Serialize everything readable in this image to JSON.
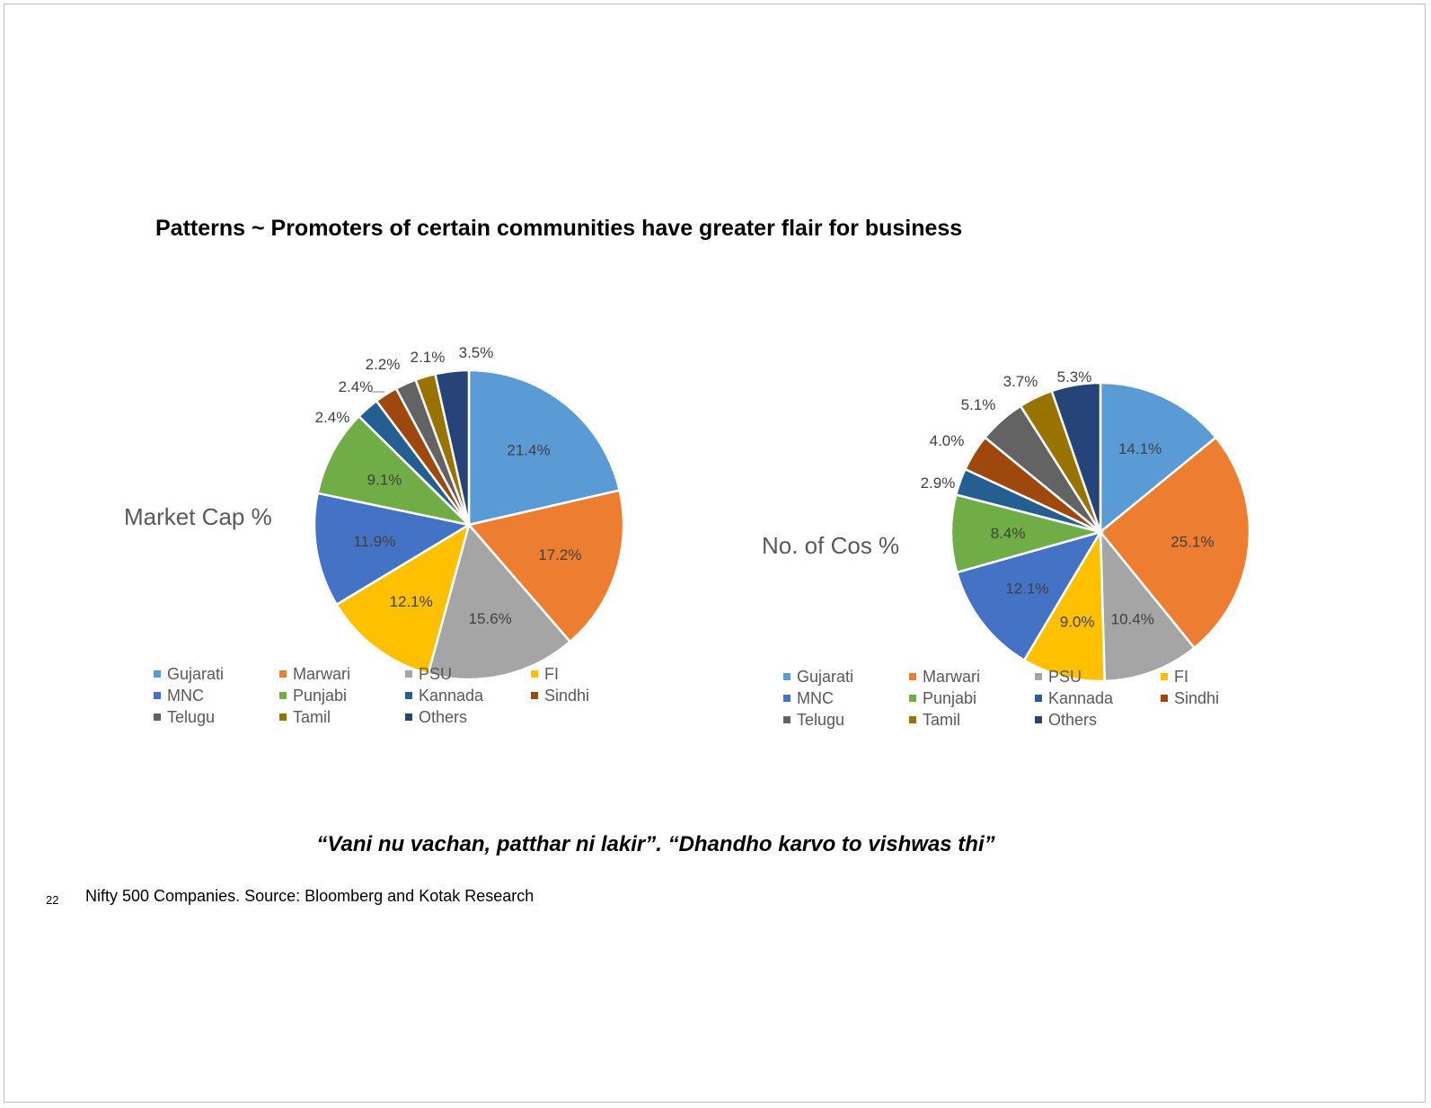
{
  "slide": {
    "title": "Patterns ~ Promoters of certain communities have greater flair for business",
    "quote": "“Vani nu vachan, patthar ni lakir”. “Dhandho karvo to vishwas thi”",
    "page_number": "22",
    "source": "Nifty 500 Companies. Source: Bloomberg and Kotak Research"
  },
  "colors": {
    "Gujarati": "#5B9BD5",
    "Marwari": "#ED7D31",
    "PSU": "#A5A5A5",
    "FI": "#FFC000",
    "MNC": "#4472C4",
    "Punjabi": "#70AD47",
    "Kannada": "#255E91",
    "Sindhi": "#9E480E",
    "Telugu": "#636363",
    "Tamil": "#997300",
    "Others": "#264478"
  },
  "chart_data": [
    {
      "type": "pie",
      "title": "Market Cap %",
      "categories": [
        "Gujarati",
        "Marwari",
        "PSU",
        "FI",
        "MNC",
        "Punjabi",
        "Kannada",
        "Sindhi",
        "Telugu",
        "Tamil",
        "Others"
      ],
      "values": [
        21.4,
        17.2,
        15.6,
        12.1,
        11.9,
        9.1,
        2.4,
        2.4,
        2.2,
        2.1,
        3.5
      ],
      "labels": [
        "21.4%",
        "17.2%",
        "15.6%",
        "12.1%",
        "11.9%",
        "9.1%",
        "2.4%",
        "2.4%",
        "2.2%",
        "2.1%",
        "3.5%"
      ],
      "legend_position": "bottom"
    },
    {
      "type": "pie",
      "title": "No. of Cos %",
      "categories": [
        "Gujarati",
        "Marwari",
        "PSU",
        "FI",
        "MNC",
        "Punjabi",
        "Kannada",
        "Sindhi",
        "Telugu",
        "Tamil",
        "Others"
      ],
      "values": [
        14.1,
        25.1,
        10.4,
        9.0,
        12.1,
        8.4,
        2.9,
        4.0,
        5.1,
        3.7,
        5.3
      ],
      "labels": [
        "14.1%",
        "25.1%",
        "10.4%",
        "9.0%",
        "12.1%",
        "8.4%",
        "2.9%",
        "4.0%",
        "5.1%",
        "3.7%",
        "5.3%"
      ],
      "legend_position": "bottom"
    }
  ]
}
